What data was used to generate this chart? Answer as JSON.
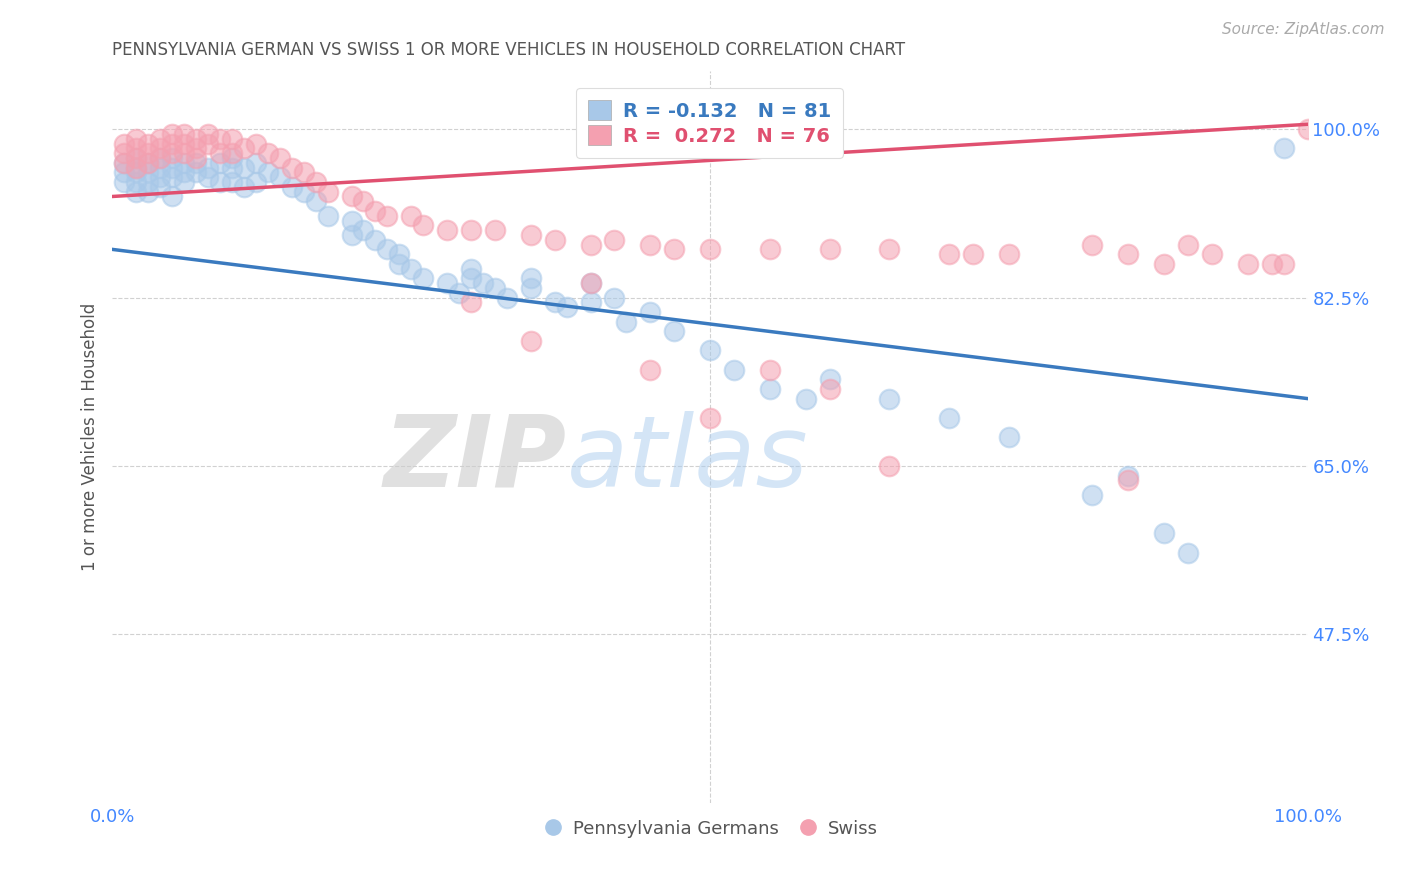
{
  "title": "PENNSYLVANIA GERMAN VS SWISS 1 OR MORE VEHICLES IN HOUSEHOLD CORRELATION CHART",
  "source_text": "Source: ZipAtlas.com",
  "ylabel": "1 or more Vehicles in Household",
  "xlim": [
    0.0,
    1.0
  ],
  "ylim": [
    0.3,
    1.06
  ],
  "xtick_positions": [
    0.0,
    1.0
  ],
  "xtick_labels": [
    "0.0%",
    "100.0%"
  ],
  "ytick_positions": [
    1.0,
    0.825,
    0.65,
    0.475
  ],
  "ytick_labels": [
    "100.0%",
    "82.5%",
    "65.0%",
    "47.5%"
  ],
  "legend_line1": "R = -0.132   N = 81",
  "legend_line2": "R =  0.272   N = 76",
  "color_blue": "#a8c8e8",
  "color_pink": "#f4a0b0",
  "color_blue_line": "#3a7abf",
  "color_pink_line": "#e05070",
  "watermark_zip": "ZIP",
  "watermark_atlas": "atlas",
  "legend_label1": "Pennsylvania Germans",
  "legend_label2": "Swiss",
  "blue_line_y_start": 0.875,
  "blue_line_y_end": 0.72,
  "pink_line_y_start": 0.93,
  "pink_line_y_end": 1.005,
  "background_color": "#ffffff",
  "grid_color": "#cccccc",
  "title_color": "#555555",
  "tick_color": "#4488ff",
  "ylabel_color": "#555555",
  "source_color": "#aaaaaa",
  "blue_x": [
    0.01,
    0.01,
    0.01,
    0.02,
    0.02,
    0.02,
    0.02,
    0.02,
    0.03,
    0.03,
    0.03,
    0.03,
    0.04,
    0.04,
    0.04,
    0.04,
    0.05,
    0.05,
    0.05,
    0.05,
    0.06,
    0.06,
    0.06,
    0.07,
    0.07,
    0.08,
    0.08,
    0.09,
    0.09,
    0.1,
    0.1,
    0.1,
    0.11,
    0.11,
    0.12,
    0.12,
    0.13,
    0.14,
    0.15,
    0.16,
    0.17,
    0.18,
    0.2,
    0.2,
    0.21,
    0.22,
    0.23,
    0.24,
    0.24,
    0.25,
    0.26,
    0.28,
    0.29,
    0.3,
    0.3,
    0.31,
    0.32,
    0.33,
    0.35,
    0.35,
    0.37,
    0.38,
    0.4,
    0.4,
    0.42,
    0.43,
    0.45,
    0.47,
    0.5,
    0.52,
    0.55,
    0.58,
    0.6,
    0.65,
    0.7,
    0.75,
    0.82,
    0.85,
    0.88,
    0.9,
    0.98
  ],
  "blue_y": [
    0.965,
    0.955,
    0.945,
    0.97,
    0.96,
    0.955,
    0.945,
    0.935,
    0.965,
    0.955,
    0.945,
    0.935,
    0.97,
    0.96,
    0.95,
    0.94,
    0.97,
    0.96,
    0.95,
    0.93,
    0.965,
    0.955,
    0.945,
    0.965,
    0.955,
    0.96,
    0.95,
    0.965,
    0.945,
    0.97,
    0.96,
    0.945,
    0.96,
    0.94,
    0.965,
    0.945,
    0.955,
    0.95,
    0.94,
    0.935,
    0.925,
    0.91,
    0.905,
    0.89,
    0.895,
    0.885,
    0.875,
    0.87,
    0.86,
    0.855,
    0.845,
    0.84,
    0.83,
    0.855,
    0.845,
    0.84,
    0.835,
    0.825,
    0.845,
    0.835,
    0.82,
    0.815,
    0.84,
    0.82,
    0.825,
    0.8,
    0.81,
    0.79,
    0.77,
    0.75,
    0.73,
    0.72,
    0.74,
    0.72,
    0.7,
    0.68,
    0.62,
    0.64,
    0.58,
    0.56,
    0.98
  ],
  "pink_x": [
    0.01,
    0.01,
    0.01,
    0.02,
    0.02,
    0.02,
    0.02,
    0.03,
    0.03,
    0.03,
    0.04,
    0.04,
    0.04,
    0.05,
    0.05,
    0.05,
    0.06,
    0.06,
    0.06,
    0.07,
    0.07,
    0.07,
    0.08,
    0.08,
    0.09,
    0.09,
    0.1,
    0.1,
    0.11,
    0.12,
    0.13,
    0.14,
    0.15,
    0.16,
    0.17,
    0.18,
    0.2,
    0.21,
    0.22,
    0.23,
    0.25,
    0.26,
    0.28,
    0.3,
    0.32,
    0.35,
    0.37,
    0.4,
    0.42,
    0.45,
    0.47,
    0.5,
    0.55,
    0.6,
    0.65,
    0.7,
    0.72,
    0.75,
    0.82,
    0.85,
    0.88,
    0.9,
    0.92,
    0.95,
    0.97,
    0.98,
    1.0,
    0.55,
    0.6,
    0.65,
    0.85,
    0.5,
    0.3,
    0.35,
    0.4,
    0.45
  ],
  "pink_y": [
    0.985,
    0.975,
    0.965,
    0.99,
    0.98,
    0.97,
    0.96,
    0.985,
    0.975,
    0.965,
    0.99,
    0.98,
    0.97,
    0.995,
    0.985,
    0.975,
    0.995,
    0.985,
    0.975,
    0.99,
    0.98,
    0.97,
    0.995,
    0.985,
    0.99,
    0.975,
    0.99,
    0.975,
    0.98,
    0.985,
    0.975,
    0.97,
    0.96,
    0.955,
    0.945,
    0.935,
    0.93,
    0.925,
    0.915,
    0.91,
    0.91,
    0.9,
    0.895,
    0.895,
    0.895,
    0.89,
    0.885,
    0.88,
    0.885,
    0.88,
    0.875,
    0.875,
    0.875,
    0.875,
    0.875,
    0.87,
    0.87,
    0.87,
    0.88,
    0.87,
    0.86,
    0.88,
    0.87,
    0.86,
    0.86,
    0.86,
    1.0,
    0.75,
    0.73,
    0.65,
    0.635,
    0.7,
    0.82,
    0.78,
    0.84,
    0.75
  ]
}
